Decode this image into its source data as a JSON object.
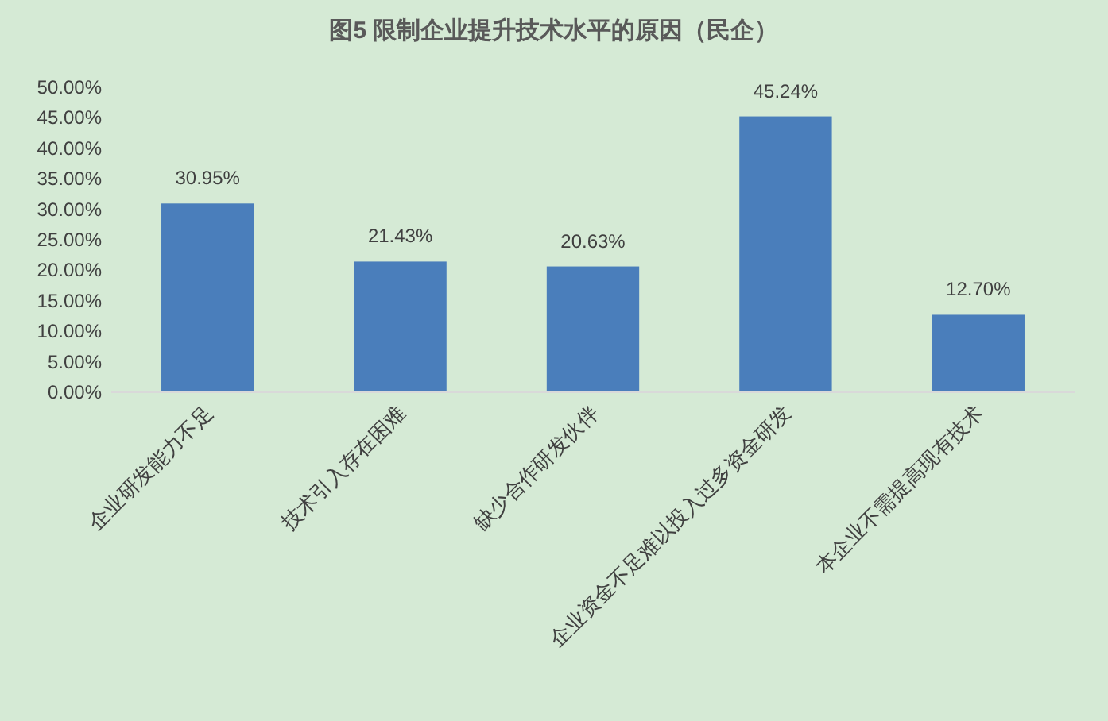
{
  "chart_data": {
    "type": "bar",
    "title": "图5 限制企业提升技术水平的原因（民企）",
    "categories": [
      "企业研发能力不足",
      "技术引入存在困难",
      "缺少合作研发伙伴",
      "企业资金不足难以投入过多资金研发",
      "本企业不需提高现有技术"
    ],
    "values": [
      30.95,
      21.43,
      20.63,
      45.24,
      12.7
    ],
    "value_labels": [
      "30.95%",
      "21.43%",
      "20.63%",
      "45.24%",
      "12.70%"
    ],
    "color": "#4a7ebb",
    "ylim": [
      0,
      50
    ],
    "yticks": [
      {
        "value": 0,
        "label": "0.00%"
      },
      {
        "value": 5,
        "label": "5.00%"
      },
      {
        "value": 10,
        "label": "10.00%"
      },
      {
        "value": 15,
        "label": "15.00%"
      },
      {
        "value": 20,
        "label": "20.00%"
      },
      {
        "value": 25,
        "label": "25.00%"
      },
      {
        "value": 30,
        "label": "30.00%"
      },
      {
        "value": 35,
        "label": "35.00%"
      },
      {
        "value": 40,
        "label": "40.00%"
      },
      {
        "value": 45,
        "label": "45.00%"
      },
      {
        "value": 50,
        "label": "50.00%"
      }
    ]
  }
}
